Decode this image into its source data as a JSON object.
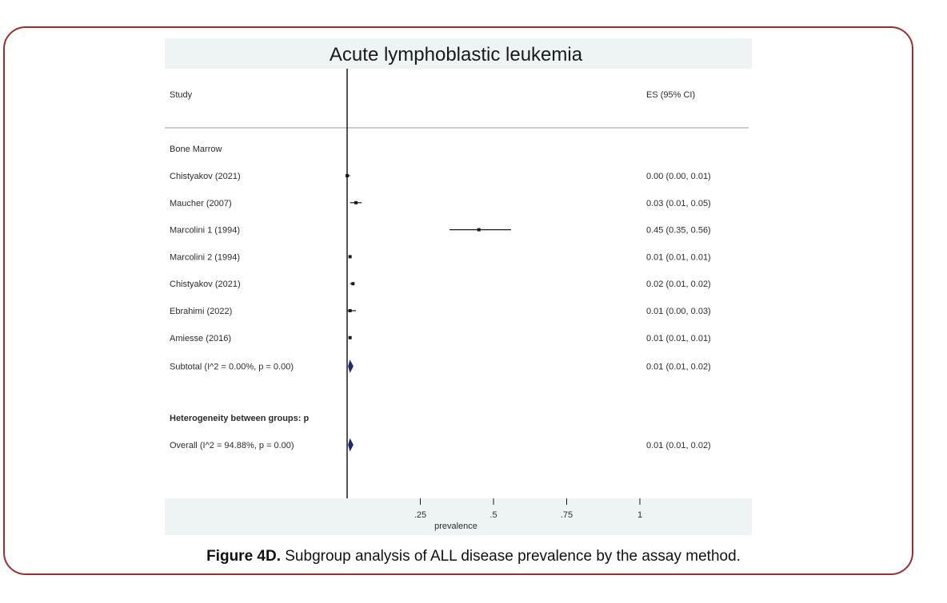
{
  "chart_data": {
    "type": "forest",
    "title": "Acute lymphoblastic leukemia",
    "header_left": "Study",
    "header_right": "ES (95% CI)",
    "subgroup_label": "Bone Marrow",
    "studies": [
      {
        "label": "Chistyakov (2021)",
        "es": 0.0,
        "lo": 0.0,
        "hi": 0.01,
        "ci_text": "0.00 (0.00, 0.01)"
      },
      {
        "label": "Maucher (2007)",
        "es": 0.03,
        "lo": 0.01,
        "hi": 0.05,
        "ci_text": "0.03 (0.01, 0.05)"
      },
      {
        "label": "Marcolini 1 (1994)",
        "es": 0.45,
        "lo": 0.35,
        "hi": 0.56,
        "ci_text": "0.45 (0.35, 0.56)"
      },
      {
        "label": "Marcolini 2 (1994)",
        "es": 0.01,
        "lo": 0.01,
        "hi": 0.01,
        "ci_text": "0.01 (0.01, 0.01)"
      },
      {
        "label": "Chistyakov (2021)",
        "es": 0.02,
        "lo": 0.01,
        "hi": 0.02,
        "ci_text": "0.02 (0.01, 0.02)"
      },
      {
        "label": "Ebrahimi (2022)",
        "es": 0.01,
        "lo": 0.0,
        "hi": 0.03,
        "ci_text": "0.01 (0.00, 0.03)"
      },
      {
        "label": "Amiesse (2016)",
        "es": 0.01,
        "lo": 0.01,
        "hi": 0.01,
        "ci_text": "0.01 (0.01, 0.01)"
      }
    ],
    "subtotal": {
      "label": "Subtotal (I^2 = 0.00%, p = 0.00)",
      "es": 0.01,
      "lo": 0.01,
      "hi": 0.02,
      "ci_text": "0.01 (0.01, 0.02)"
    },
    "heterogeneity_label": "Heterogeneity between groups: p",
    "overall": {
      "label": "Overall (I^2 = 94.88%, p = 0.00)",
      "es": 0.01,
      "lo": 0.01,
      "hi": 0.02,
      "ci_text": "0.01 (0.01, 0.02)"
    },
    "xaxis": {
      "min": 0,
      "max": 1,
      "ticks": [
        0.25,
        0.5,
        0.75,
        1
      ],
      "tick_labels": [
        ".25",
        ".5",
        ".75",
        "1"
      ],
      "label": "prevalence"
    }
  },
  "caption": {
    "bold": "Figure 4D.",
    "text": " Subgroup analysis of ALL disease prevalence by the assay method."
  },
  "colors": {
    "panel_bg": "#eef4f4",
    "frame_border": "#9b2f2f",
    "line": "#1a1a1a",
    "diamond": "#1f2b6e"
  }
}
